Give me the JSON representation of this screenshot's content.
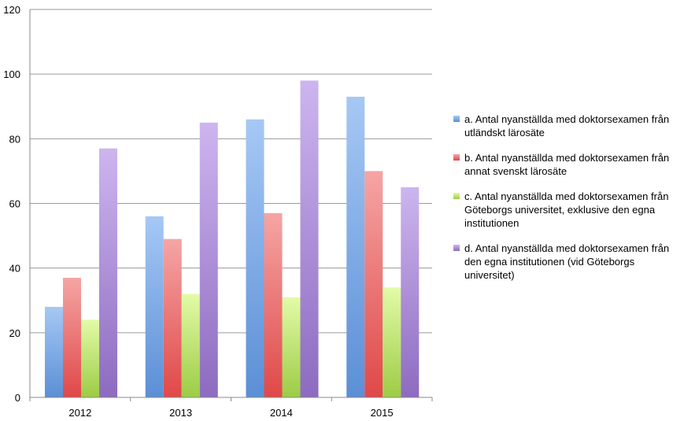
{
  "chart_data": {
    "type": "bar",
    "categories": [
      "2012",
      "2013",
      "2014",
      "2015"
    ],
    "series": [
      {
        "name": "a. Antal nyanställda med doktorsexamen från utländskt lärosäte",
        "values": [
          28,
          56,
          86,
          93
        ],
        "color": "#5b8fd6",
        "color_light": "#a6c8f5"
      },
      {
        "name": "b. Antal nyanställda med doktorsexamen från annat svenskt lärosäte",
        "values": [
          37,
          49,
          57,
          70
        ],
        "color": "#e04848",
        "color_light": "#f5a5a5"
      },
      {
        "name": "c. Antal nyanställda med doktorsexamen från Göteborgs universitet, exklusive den egna institutionen",
        "values": [
          24,
          32,
          31,
          34
        ],
        "color": "#9ccc45",
        "color_light": "#e3fba8"
      },
      {
        "name": "d. Antal nyanställda med doktorsexamen från den egna institutionen (vid Göteborgs universitet)",
        "values": [
          77,
          85,
          98,
          65
        ],
        "color": "#8d6bc0",
        "color_light": "#cdb5ef"
      }
    ],
    "y_ticks": [
      "0",
      "20",
      "40",
      "60",
      "80",
      "100",
      "120"
    ],
    "ylim": [
      0,
      120
    ],
    "grid": true,
    "legend_position": "right"
  }
}
